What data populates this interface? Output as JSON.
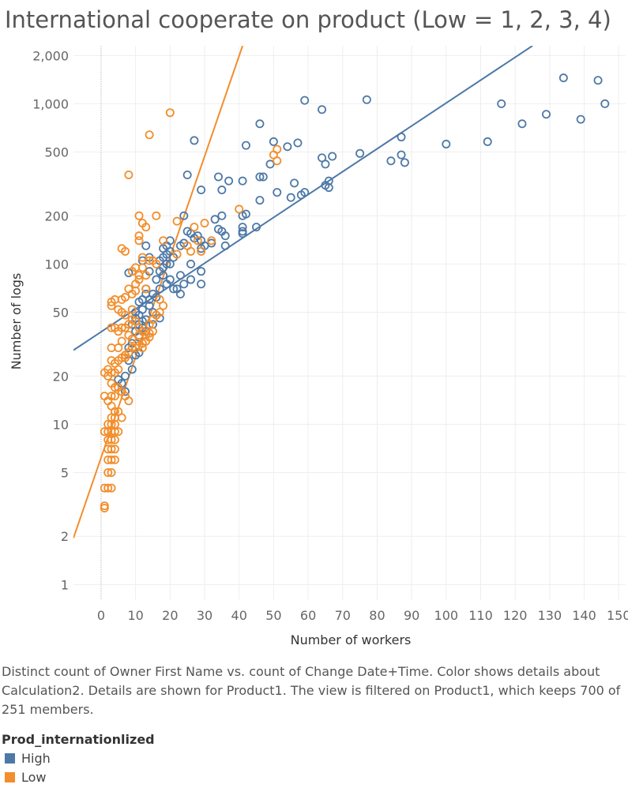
{
  "title": "International cooperate on product (Low = 1, 2, 3, 4)",
  "caption": "Distinct count of Owner First Name vs. count of Change Date+Time.  Color shows details about Calculation2.  Details are shown for Product1. The view is filtered on Product1, which keeps 700 of 251 members.",
  "legend": {
    "title": "Prod_internationlized",
    "items": [
      {
        "label": "High",
        "color": "#4e79a7"
      },
      {
        "label": "Low",
        "color": "#f28e2b"
      }
    ]
  },
  "chart_data": {
    "type": "scatter",
    "xlabel": "Number of workers",
    "ylabel": "Number of logs",
    "x_ticks": [
      0,
      10,
      20,
      30,
      40,
      50,
      60,
      70,
      80,
      90,
      100,
      110,
      120,
      130,
      140,
      150
    ],
    "y_ticks": [
      {
        "value": 1,
        "label": "1"
      },
      {
        "value": 2,
        "label": "2"
      },
      {
        "value": 5,
        "label": "5"
      },
      {
        "value": 10,
        "label": "10"
      },
      {
        "value": 20,
        "label": "20"
      },
      {
        "value": 50,
        "label": "50"
      },
      {
        "value": 100,
        "label": "100"
      },
      {
        "value": 200,
        "label": "200"
      },
      {
        "value": 500,
        "label": "500"
      },
      {
        "value": 1000,
        "label": "1,000"
      },
      {
        "value": 2000,
        "label": "2,000"
      }
    ],
    "xlim": [
      -8,
      152
    ],
    "ylim": [
      0.8,
      2300
    ],
    "y_scale": "log",
    "grid": true,
    "series": [
      {
        "name": "High",
        "color": "#4e79a7",
        "points": [
          [
            134,
            1450
          ],
          [
            144,
            1400
          ],
          [
            146,
            1000
          ],
          [
            139,
            800
          ],
          [
            129,
            860
          ],
          [
            122,
            750
          ],
          [
            116,
            1000
          ],
          [
            112,
            580
          ],
          [
            100,
            560
          ],
          [
            87,
            620
          ],
          [
            87,
            480
          ],
          [
            88,
            430
          ],
          [
            84,
            440
          ],
          [
            75,
            490
          ],
          [
            67,
            470
          ],
          [
            64,
            460
          ],
          [
            65,
            420
          ],
          [
            66,
            330
          ],
          [
            65,
            310
          ],
          [
            66,
            300
          ],
          [
            59,
            1050
          ],
          [
            64,
            920
          ],
          [
            77,
            1060
          ],
          [
            46,
            750
          ],
          [
            50,
            580
          ],
          [
            54,
            540
          ],
          [
            57,
            570
          ],
          [
            42,
            550
          ],
          [
            27,
            590
          ],
          [
            49,
            420
          ],
          [
            46,
            350
          ],
          [
            47,
            350
          ],
          [
            56,
            320
          ],
          [
            59,
            280
          ],
          [
            58,
            270
          ],
          [
            55,
            260
          ],
          [
            51,
            280
          ],
          [
            46,
            250
          ],
          [
            37,
            330
          ],
          [
            34,
            350
          ],
          [
            41,
            330
          ],
          [
            35,
            290
          ],
          [
            29,
            290
          ],
          [
            25,
            360
          ],
          [
            35,
            200
          ],
          [
            41,
            200
          ],
          [
            42,
            205
          ],
          [
            45,
            170
          ],
          [
            41,
            170
          ],
          [
            41,
            160
          ],
          [
            41,
            155
          ],
          [
            35,
            160
          ],
          [
            36,
            150
          ],
          [
            33,
            190
          ],
          [
            34,
            165
          ],
          [
            30,
            130
          ],
          [
            36,
            130
          ],
          [
            32,
            135
          ],
          [
            29,
            125
          ],
          [
            25,
            160
          ],
          [
            28,
            150
          ],
          [
            29,
            140
          ],
          [
            27,
            145
          ],
          [
            26,
            155
          ],
          [
            24,
            135
          ],
          [
            23,
            130
          ],
          [
            29,
            90
          ],
          [
            29,
            75
          ],
          [
            26,
            100
          ],
          [
            26,
            80
          ],
          [
            24,
            75
          ],
          [
            23,
            85
          ],
          [
            23,
            65
          ],
          [
            22,
            70
          ],
          [
            21,
            70
          ],
          [
            24,
            200
          ],
          [
            20,
            140
          ],
          [
            19,
            130
          ],
          [
            20,
            120
          ],
          [
            18,
            125
          ],
          [
            19,
            115
          ],
          [
            18,
            110
          ],
          [
            21,
            110
          ],
          [
            17,
            105
          ],
          [
            18,
            95
          ],
          [
            19,
            100
          ],
          [
            17,
            90
          ],
          [
            13,
            130
          ],
          [
            14,
            110
          ],
          [
            12,
            105
          ],
          [
            20,
            100
          ],
          [
            18,
            85
          ],
          [
            16,
            80
          ],
          [
            19,
            75
          ],
          [
            17,
            70
          ],
          [
            20,
            80
          ],
          [
            14,
            90
          ],
          [
            8,
            88
          ],
          [
            12,
            60
          ],
          [
            11,
            58
          ],
          [
            13,
            65
          ],
          [
            14,
            55
          ],
          [
            12,
            52
          ],
          [
            10,
            50
          ],
          [
            11,
            48
          ],
          [
            13,
            45
          ],
          [
            15,
            42
          ],
          [
            12,
            40
          ],
          [
            10,
            38
          ],
          [
            11,
            35
          ],
          [
            9,
            32
          ],
          [
            10,
            30
          ],
          [
            11,
            28
          ],
          [
            10,
            27
          ],
          [
            8,
            25
          ],
          [
            9,
            22
          ],
          [
            7,
            20
          ],
          [
            6,
            18
          ],
          [
            7,
            16
          ],
          [
            5,
            19
          ],
          [
            8,
            30
          ],
          [
            14,
            60
          ],
          [
            13,
            70
          ],
          [
            16,
            62
          ],
          [
            15,
            65
          ],
          [
            12,
            44
          ],
          [
            9,
            42
          ],
          [
            10,
            46
          ],
          [
            11,
            42
          ],
          [
            13,
            38
          ],
          [
            15,
            50
          ],
          [
            16,
            48
          ],
          [
            17,
            46
          ]
        ]
      },
      {
        "name": "Low",
        "color": "#f28e2b",
        "points": [
          [
            20,
            880
          ],
          [
            14,
            640
          ],
          [
            8,
            360
          ],
          [
            11,
            200
          ],
          [
            12,
            180
          ],
          [
            16,
            200
          ],
          [
            13,
            170
          ],
          [
            50,
            480
          ],
          [
            51,
            520
          ],
          [
            51,
            440
          ],
          [
            40,
            220
          ],
          [
            30,
            180
          ],
          [
            27,
            170
          ],
          [
            22,
            185
          ],
          [
            25,
            130
          ],
          [
            26,
            120
          ],
          [
            22,
            115
          ],
          [
            28,
            140
          ],
          [
            32,
            140
          ],
          [
            29,
            120
          ],
          [
            11,
            150
          ],
          [
            11,
            140
          ],
          [
            18,
            140
          ],
          [
            6,
            125
          ],
          [
            7,
            120
          ],
          [
            12,
            110
          ],
          [
            14,
            105
          ],
          [
            15,
            105
          ],
          [
            16,
            100
          ],
          [
            10,
            95
          ],
          [
            9,
            90
          ],
          [
            11,
            85
          ],
          [
            11,
            80
          ],
          [
            10,
            75
          ],
          [
            13,
            70
          ],
          [
            8,
            70
          ],
          [
            9,
            65
          ],
          [
            7,
            62
          ],
          [
            6,
            60
          ],
          [
            4,
            60
          ],
          [
            3,
            58
          ],
          [
            3,
            55
          ],
          [
            5,
            52
          ],
          [
            6,
            50
          ],
          [
            7,
            48
          ],
          [
            9,
            45
          ],
          [
            10,
            44
          ],
          [
            11,
            40
          ],
          [
            12,
            38
          ],
          [
            13,
            36
          ],
          [
            8,
            42
          ],
          [
            7,
            40
          ],
          [
            6,
            40
          ],
          [
            5,
            38
          ],
          [
            4,
            40
          ],
          [
            3,
            40
          ],
          [
            17,
            60
          ],
          [
            18,
            55
          ],
          [
            17,
            50
          ],
          [
            16,
            48
          ],
          [
            15,
            45
          ],
          [
            14,
            42
          ],
          [
            15,
            38
          ],
          [
            14,
            35
          ],
          [
            13,
            33
          ],
          [
            12,
            32
          ],
          [
            11,
            31
          ],
          [
            10,
            30
          ],
          [
            9,
            30
          ],
          [
            8,
            28
          ],
          [
            7,
            27
          ],
          [
            6,
            26
          ],
          [
            5,
            25
          ],
          [
            4,
            24
          ],
          [
            3,
            25
          ],
          [
            5,
            22
          ],
          [
            4,
            21
          ],
          [
            3,
            21
          ],
          [
            2,
            20
          ],
          [
            3,
            18
          ],
          [
            4,
            17
          ],
          [
            5,
            17
          ],
          [
            6,
            16
          ],
          [
            7,
            15
          ],
          [
            8,
            14
          ],
          [
            4,
            15
          ],
          [
            3,
            15
          ],
          [
            1,
            15
          ],
          [
            2,
            14
          ],
          [
            3,
            13
          ],
          [
            4,
            12
          ],
          [
            5,
            12
          ],
          [
            6,
            11
          ],
          [
            4,
            11
          ],
          [
            3,
            11
          ],
          [
            2,
            10
          ],
          [
            3,
            10
          ],
          [
            4,
            10
          ],
          [
            5,
            9
          ],
          [
            4,
            9
          ],
          [
            3,
            9
          ],
          [
            2,
            9
          ],
          [
            1,
            9
          ],
          [
            2,
            8
          ],
          [
            3,
            8
          ],
          [
            4,
            8
          ],
          [
            3,
            7
          ],
          [
            2,
            7
          ],
          [
            4,
            7
          ],
          [
            2,
            6
          ],
          [
            3,
            6
          ],
          [
            4,
            6
          ],
          [
            2,
            5
          ],
          [
            3,
            5
          ],
          [
            1,
            4
          ],
          [
            2,
            4
          ],
          [
            3,
            4
          ],
          [
            1,
            3
          ],
          [
            1,
            3.1
          ],
          [
            1,
            21
          ],
          [
            12,
            95
          ],
          [
            13,
            85
          ],
          [
            10,
            68
          ],
          [
            9,
            52
          ],
          [
            8,
            36
          ],
          [
            12,
            30
          ],
          [
            6,
            33
          ],
          [
            9,
            34
          ],
          [
            11,
            36
          ],
          [
            14,
            37
          ],
          [
            7,
            26
          ],
          [
            5,
            30
          ],
          [
            2,
            22
          ],
          [
            3,
            30
          ]
        ]
      }
    ],
    "trend_lines": [
      {
        "series": "High",
        "color": "#4e79a7",
        "points": [
          [
            -8,
            29
          ],
          [
            125,
            2300
          ]
        ]
      },
      {
        "series": "Low",
        "color": "#f28e2b",
        "points": [
          [
            -8,
            1.95
          ],
          [
            41,
            2300
          ]
        ]
      }
    ]
  }
}
